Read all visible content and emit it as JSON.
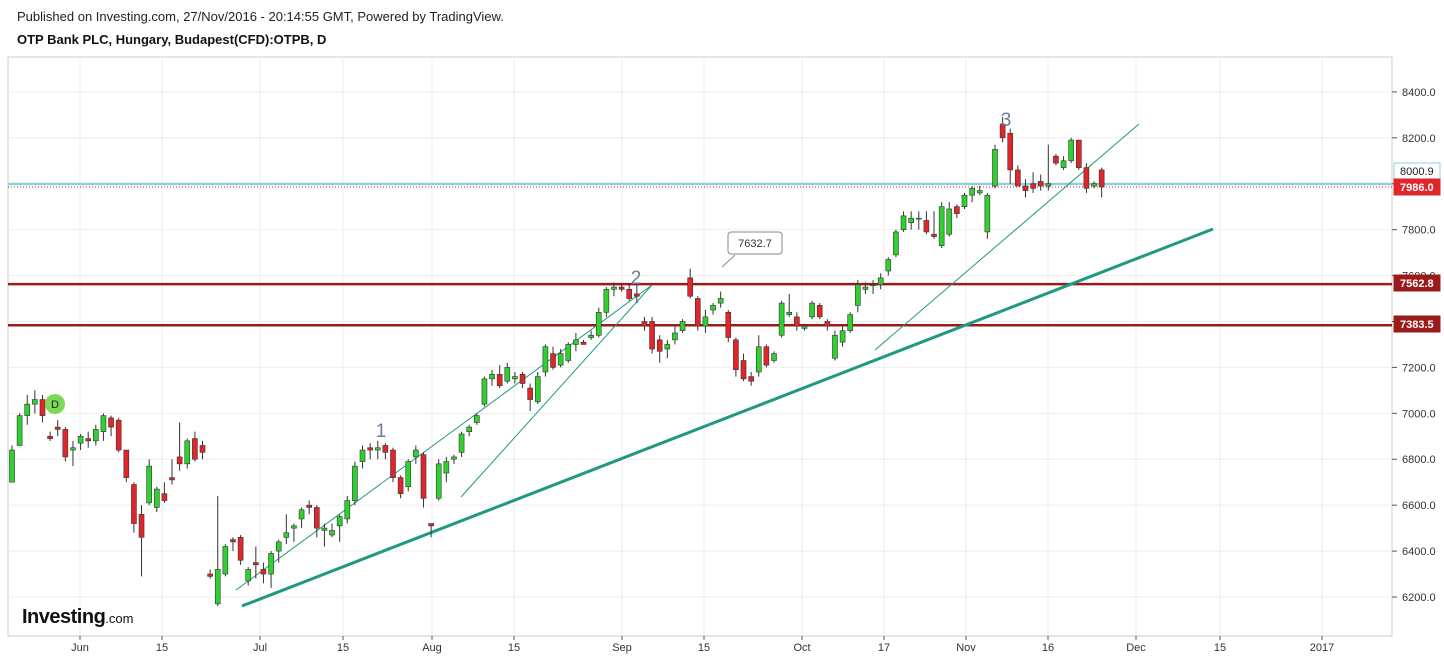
{
  "header": {
    "published": "Published on Investing.com, 27/Nov/2016 - 20:14:55 GMT, Powered by TradingView.",
    "title": "OTP Bank PLC, Hungary, Budapest(CFD):OTPB, D"
  },
  "logo": {
    "brand": "Investing",
    "suffix": ".com"
  },
  "colors": {
    "up": "#2fd12f",
    "down": "#e0262b",
    "outline": "#333333",
    "trend_major": "#1f9a80",
    "trend_minor": "#1f9a80",
    "level": "#9b1b1b",
    "current_line": "#8fd0dc",
    "close_label": "#e0262b",
    "badge": "#7ed957",
    "grid": "#eeeeee"
  },
  "chart_data": {
    "type": "candlestick",
    "y_ticks": [
      6200,
      6400,
      6600,
      6800,
      7000,
      7200,
      7400,
      7600,
      7800,
      8000,
      8200,
      8400
    ],
    "x_ticks": [
      "Jun",
      "15",
      "Jul",
      "15",
      "Aug",
      "15",
      "Sep",
      "15",
      "Oct",
      "17",
      "Nov",
      "16",
      "Dec",
      "15",
      "2017"
    ],
    "price_labels": [
      {
        "text": "8000.9",
        "value": 8000.9,
        "style": "current"
      },
      {
        "text": "7986.0",
        "value": 7986.0,
        "style": "close"
      },
      {
        "text": "7562.8",
        "value": 7562.8,
        "style": "level"
      },
      {
        "text": "7383.5",
        "value": 7383.5,
        "style": "level"
      }
    ],
    "horizontal_levels": [
      7562.8,
      7383.5
    ],
    "callout": {
      "text": "7632.7",
      "value": 7632.7
    },
    "wave_labels": [
      "1",
      "2",
      "3"
    ],
    "badge": "D",
    "candles": [
      [
        6700,
        6860,
        6700,
        6840
      ],
      [
        6860,
        7000,
        6860,
        6990
      ],
      [
        6990,
        7080,
        6950,
        7040
      ],
      [
        7040,
        7100,
        7000,
        7060
      ],
      [
        7060,
        7080,
        6960,
        6990
      ],
      [
        6900,
        6920,
        6880,
        6890
      ],
      [
        6940,
        6970,
        6900,
        6930
      ],
      [
        6930,
        6940,
        6790,
        6810
      ],
      [
        6840,
        6880,
        6770,
        6850
      ],
      [
        6870,
        6910,
        6840,
        6900
      ],
      [
        6890,
        6920,
        6850,
        6880
      ],
      [
        6880,
        6950,
        6860,
        6930
      ],
      [
        6920,
        7000,
        6880,
        6990
      ],
      [
        6980,
        6990,
        6900,
        6940
      ],
      [
        6970,
        6980,
        6830,
        6840
      ],
      [
        6840,
        6840,
        6700,
        6720
      ],
      [
        6690,
        6700,
        6480,
        6520
      ],
      [
        6560,
        6600,
        6290,
        6460
      ],
      [
        6610,
        6800,
        6600,
        6770
      ],
      [
        6590,
        6680,
        6570,
        6670
      ],
      [
        6650,
        6700,
        6610,
        6620
      ],
      [
        6720,
        6800,
        6690,
        6710
      ],
      [
        6810,
        6960,
        6750,
        6780
      ],
      [
        6780,
        6890,
        6760,
        6880
      ],
      [
        6890,
        6920,
        6790,
        6800
      ],
      [
        6860,
        6880,
        6800,
        6830
      ],
      [
        6300,
        6320,
        6280,
        6290
      ],
      [
        6170,
        6640,
        6160,
        6320
      ],
      [
        6300,
        6430,
        6290,
        6420
      ],
      [
        6450,
        6460,
        6400,
        6440
      ],
      [
        6460,
        6470,
        6340,
        6360
      ],
      [
        6270,
        6330,
        6250,
        6320
      ],
      [
        6350,
        6420,
        6280,
        6340
      ],
      [
        6320,
        6350,
        6260,
        6300
      ],
      [
        6300,
        6400,
        6240,
        6390
      ],
      [
        6400,
        6450,
        6350,
        6440
      ],
      [
        6460,
        6560,
        6430,
        6480
      ],
      [
        6500,
        6520,
        6440,
        6510
      ],
      [
        6540,
        6590,
        6500,
        6580
      ],
      [
        6600,
        6620,
        6560,
        6590
      ],
      [
        6590,
        6600,
        6460,
        6500
      ],
      [
        6490,
        6520,
        6420,
        6500
      ],
      [
        6470,
        6520,
        6460,
        6490
      ],
      [
        6510,
        6560,
        6440,
        6550
      ],
      [
        6540,
        6640,
        6520,
        6620
      ],
      [
        6620,
        6790,
        6600,
        6770
      ],
      [
        6790,
        6860,
        6760,
        6840
      ],
      [
        6850,
        6870,
        6800,
        6840
      ],
      [
        6840,
        6880,
        6800,
        6850
      ],
      [
        6860,
        6870,
        6800,
        6830
      ],
      [
        6840,
        6850,
        6700,
        6720
      ],
      [
        6720,
        6730,
        6630,
        6650
      ],
      [
        6680,
        6800,
        6660,
        6790
      ],
      [
        6810,
        6860,
        6780,
        6840
      ],
      [
        6820,
        6830,
        6590,
        6630
      ],
      [
        6520,
        6520,
        6460,
        6510
      ],
      [
        6630,
        6800,
        6620,
        6780
      ],
      [
        6740,
        6810,
        6700,
        6790
      ],
      [
        6800,
        6820,
        6780,
        6810
      ],
      [
        6830,
        6920,
        6810,
        6910
      ],
      [
        6920,
        6950,
        6900,
        6940
      ],
      [
        6960,
        7000,
        6950,
        6990
      ],
      [
        7040,
        7160,
        7030,
        7150
      ],
      [
        7150,
        7190,
        7120,
        7170
      ],
      [
        7170,
        7210,
        7110,
        7120
      ],
      [
        7140,
        7220,
        7130,
        7200
      ],
      [
        7150,
        7180,
        7130,
        7160
      ],
      [
        7170,
        7180,
        7110,
        7130
      ],
      [
        7110,
        7130,
        7010,
        7060
      ],
      [
        7050,
        7180,
        7040,
        7160
      ],
      [
        7180,
        7300,
        7160,
        7290
      ],
      [
        7260,
        7290,
        7190,
        7200
      ],
      [
        7210,
        7280,
        7200,
        7260
      ],
      [
        7230,
        7310,
        7220,
        7300
      ],
      [
        7300,
        7350,
        7270,
        7320
      ],
      [
        7310,
        7320,
        7300,
        7300
      ],
      [
        7330,
        7360,
        7320,
        7340
      ],
      [
        7340,
        7460,
        7330,
        7440
      ],
      [
        7440,
        7550,
        7420,
        7540
      ],
      [
        7540,
        7570,
        7510,
        7550
      ],
      [
        7550,
        7560,
        7530,
        7540
      ],
      [
        7540,
        7560,
        7490,
        7500
      ],
      [
        7520,
        7570,
        7480,
        7510
      ],
      [
        7400,
        7420,
        7360,
        7380
      ],
      [
        7400,
        7420,
        7260,
        7280
      ],
      [
        7320,
        7340,
        7220,
        7270
      ],
      [
        7280,
        7320,
        7240,
        7300
      ],
      [
        7320,
        7380,
        7300,
        7350
      ],
      [
        7360,
        7410,
        7350,
        7400
      ],
      [
        7590,
        7630,
        7500,
        7510
      ],
      [
        7500,
        7510,
        7360,
        7380
      ],
      [
        7380,
        7450,
        7350,
        7420
      ],
      [
        7450,
        7480,
        7430,
        7470
      ],
      [
        7480,
        7530,
        7460,
        7500
      ],
      [
        7440,
        7450,
        7310,
        7330
      ],
      [
        7320,
        7330,
        7160,
        7190
      ],
      [
        7230,
        7260,
        7140,
        7150
      ],
      [
        7160,
        7180,
        7120,
        7140
      ],
      [
        7180,
        7340,
        7160,
        7290
      ],
      [
        7290,
        7300,
        7200,
        7210
      ],
      [
        7230,
        7270,
        7220,
        7260
      ],
      [
        7340,
        7490,
        7330,
        7480
      ],
      [
        7430,
        7520,
        7420,
        7440
      ],
      [
        7420,
        7440,
        7360,
        7380
      ],
      [
        7370,
        7390,
        7360,
        7380
      ],
      [
        7420,
        7490,
        7410,
        7480
      ],
      [
        7470,
        7480,
        7410,
        7420
      ],
      [
        7400,
        7410,
        7360,
        7380
      ],
      [
        7240,
        7360,
        7230,
        7340
      ],
      [
        7310,
        7380,
        7290,
        7360
      ],
      [
        7360,
        7440,
        7350,
        7430
      ],
      [
        7470,
        7580,
        7440,
        7560
      ],
      [
        7540,
        7570,
        7520,
        7550
      ],
      [
        7560,
        7580,
        7520,
        7560
      ],
      [
        7560,
        7610,
        7540,
        7590
      ],
      [
        7620,
        7680,
        7600,
        7670
      ],
      [
        7690,
        7800,
        7680,
        7790
      ],
      [
        7800,
        7880,
        7790,
        7860
      ],
      [
        7830,
        7880,
        7800,
        7850
      ],
      [
        7850,
        7880,
        7800,
        7850
      ],
      [
        7840,
        7880,
        7780,
        7790
      ],
      [
        7780,
        7880,
        7760,
        7770
      ],
      [
        7730,
        7920,
        7720,
        7900
      ],
      [
        7780,
        7920,
        7770,
        7890
      ],
      [
        7900,
        7910,
        7850,
        7870
      ],
      [
        7900,
        7960,
        7890,
        7950
      ],
      [
        7950,
        7990,
        7920,
        7980
      ],
      [
        7960,
        7990,
        7950,
        7970
      ],
      [
        7790,
        7960,
        7760,
        7950
      ],
      [
        7990,
        8170,
        7980,
        8150
      ],
      [
        8260,
        8290,
        8180,
        8200
      ],
      [
        8220,
        8240,
        8000,
        8060
      ],
      [
        8060,
        8080,
        7990,
        7990
      ],
      [
        7990,
        8020,
        7940,
        7970
      ],
      [
        8000,
        8050,
        7960,
        7980
      ],
      [
        8010,
        8040,
        7970,
        7990
      ],
      [
        7990,
        8170,
        7970,
        8000
      ],
      [
        8120,
        8130,
        8080,
        8090
      ],
      [
        8070,
        8120,
        8060,
        8100
      ],
      [
        8100,
        8200,
        8090,
        8190
      ],
      [
        8190,
        8190,
        8060,
        8070
      ],
      [
        8070,
        8090,
        7960,
        7980
      ],
      [
        7990,
        8010,
        7980,
        8000
      ],
      [
        8060,
        8070,
        7940,
        7986
      ]
    ]
  }
}
